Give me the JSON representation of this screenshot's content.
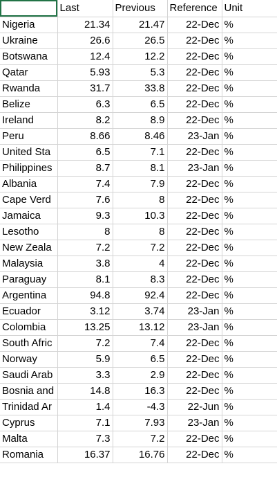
{
  "columns": [
    "",
    "Last",
    "Previous",
    "Reference",
    "Unit"
  ],
  "rows": [
    {
      "country": "Nigeria",
      "last": "21.34",
      "previous": "21.47",
      "reference": "22-Dec",
      "unit": "%"
    },
    {
      "country": "Ukraine",
      "last": "26.6",
      "previous": "26.5",
      "reference": "22-Dec",
      "unit": "%"
    },
    {
      "country": "Botswana",
      "last": "12.4",
      "previous": "12.2",
      "reference": "22-Dec",
      "unit": "%"
    },
    {
      "country": "Qatar",
      "last": "5.93",
      "previous": "5.3",
      "reference": "22-Dec",
      "unit": "%"
    },
    {
      "country": "Rwanda",
      "last": "31.7",
      "previous": "33.8",
      "reference": "22-Dec",
      "unit": "%"
    },
    {
      "country": "Belize",
      "last": "6.3",
      "previous": "6.5",
      "reference": "22-Dec",
      "unit": "%"
    },
    {
      "country": "Ireland",
      "last": "8.2",
      "previous": "8.9",
      "reference": "22-Dec",
      "unit": "%"
    },
    {
      "country": "Peru",
      "last": "8.66",
      "previous": "8.46",
      "reference": "23-Jan",
      "unit": "%"
    },
    {
      "country": "United Sta",
      "last": "6.5",
      "previous": "7.1",
      "reference": "22-Dec",
      "unit": "%"
    },
    {
      "country": "Philippines",
      "last": "8.7",
      "previous": "8.1",
      "reference": "23-Jan",
      "unit": "%"
    },
    {
      "country": "Albania",
      "last": "7.4",
      "previous": "7.9",
      "reference": "22-Dec",
      "unit": "%"
    },
    {
      "country": "Cape Verd",
      "last": "7.6",
      "previous": "8",
      "reference": "22-Dec",
      "unit": "%"
    },
    {
      "country": "Jamaica",
      "last": "9.3",
      "previous": "10.3",
      "reference": "22-Dec",
      "unit": "%"
    },
    {
      "country": "Lesotho",
      "last": "8",
      "previous": "8",
      "reference": "22-Dec",
      "unit": "%"
    },
    {
      "country": "New Zeala",
      "last": "7.2",
      "previous": "7.2",
      "reference": "22-Dec",
      "unit": "%"
    },
    {
      "country": "Malaysia",
      "last": "3.8",
      "previous": "4",
      "reference": "22-Dec",
      "unit": "%"
    },
    {
      "country": "Paraguay",
      "last": "8.1",
      "previous": "8.3",
      "reference": "22-Dec",
      "unit": "%"
    },
    {
      "country": "Argentina",
      "last": "94.8",
      "previous": "92.4",
      "reference": "22-Dec",
      "unit": "%"
    },
    {
      "country": "Ecuador",
      "last": "3.12",
      "previous": "3.74",
      "reference": "23-Jan",
      "unit": "%"
    },
    {
      "country": "Colombia",
      "last": "13.25",
      "previous": "13.12",
      "reference": "23-Jan",
      "unit": "%"
    },
    {
      "country": "South Afric",
      "last": "7.2",
      "previous": "7.4",
      "reference": "22-Dec",
      "unit": "%"
    },
    {
      "country": "Norway",
      "last": "5.9",
      "previous": "6.5",
      "reference": "22-Dec",
      "unit": "%"
    },
    {
      "country": "Saudi Arab",
      "last": "3.3",
      "previous": "2.9",
      "reference": "22-Dec",
      "unit": "%"
    },
    {
      "country": "Bosnia and",
      "last": "14.8",
      "previous": "16.3",
      "reference": "22-Dec",
      "unit": "%"
    },
    {
      "country": "Trinidad Ar",
      "last": "1.4",
      "previous": "-4.3",
      "reference": "22-Jun",
      "unit": "%"
    },
    {
      "country": "Cyprus",
      "last": "7.1",
      "previous": "7.93",
      "reference": "23-Jan",
      "unit": "%"
    },
    {
      "country": "Malta",
      "last": "7.3",
      "previous": "7.2",
      "reference": "22-Dec",
      "unit": "%"
    },
    {
      "country": "Romania",
      "last": "16.37",
      "previous": "16.76",
      "reference": "22-Dec",
      "unit": "%"
    }
  ]
}
